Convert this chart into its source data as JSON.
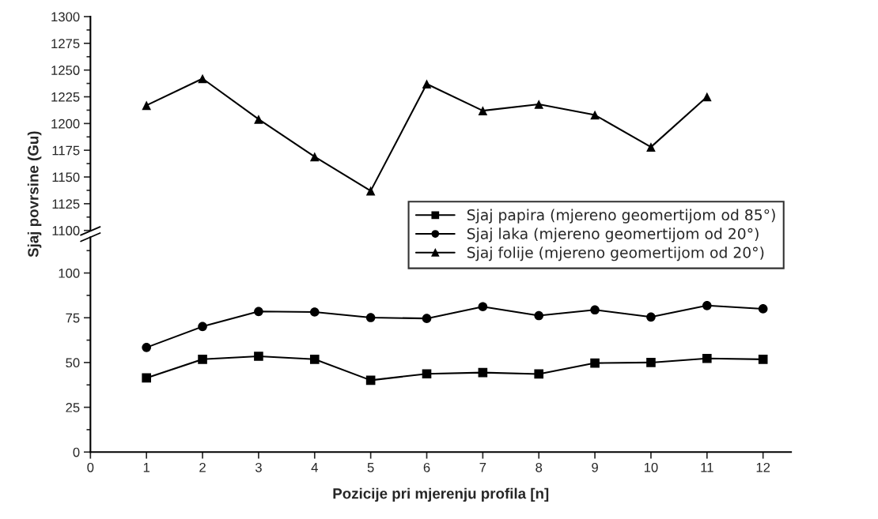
{
  "chart_data": [
    {
      "type": "line",
      "ylabel": "Sjaj povrsine (Gu)",
      "x": [
        1,
        2,
        3,
        4,
        5,
        6,
        7,
        8,
        9,
        10,
        11
      ],
      "ylim": [
        1100,
        1300
      ],
      "yticks": [
        1100,
        1125,
        1150,
        1175,
        1200,
        1225,
        1250,
        1275,
        1300
      ],
      "tick_labels": "y",
      "grid": false,
      "legend": "bottom right",
      "series": [
        {
          "name": "Sjaj folije (mjereno geomertijom od 20°)",
          "color": "#000000",
          "marker": "triangle",
          "values": [
            1217,
            1242,
            1204,
            1169,
            1137,
            1237,
            1212,
            1218,
            1208,
            1178,
            1225
          ]
        }
      ]
    },
    {
      "type": "line",
      "xlabel": "Pozicije pri mjerenju profila [n]",
      "x": [
        1,
        2,
        3,
        4,
        5,
        6,
        7,
        8,
        9,
        10,
        11,
        12
      ],
      "xlim": [
        0,
        12.5
      ],
      "xticks": [
        0,
        1,
        2,
        3,
        4,
        5,
        6,
        7,
        8,
        9,
        10,
        11,
        12
      ],
      "ylim": [
        0,
        120
      ],
      "yticks": [
        0,
        25,
        50,
        75,
        100
      ],
      "grid": false,
      "legend": "top right",
      "series": [
        {
          "name": "Sjaj papira (mjereno geomertijom od 85°)",
          "color": "#000000",
          "marker": "square",
          "values": [
            41.4,
            51.8,
            53.5,
            51.8,
            40.1,
            43.7,
            44.4,
            43.6,
            49.7,
            50.0,
            52.3,
            51.8
          ]
        },
        {
          "name": "Sjaj laka (mjereno geomertijom od 20°)",
          "color": "#000000",
          "marker": "circle",
          "values": [
            58.4,
            70.1,
            78.5,
            78.2,
            75.1,
            74.6,
            81.2,
            76.2,
            79.4,
            75.4,
            81.8,
            80.0
          ]
        }
      ]
    }
  ]
}
